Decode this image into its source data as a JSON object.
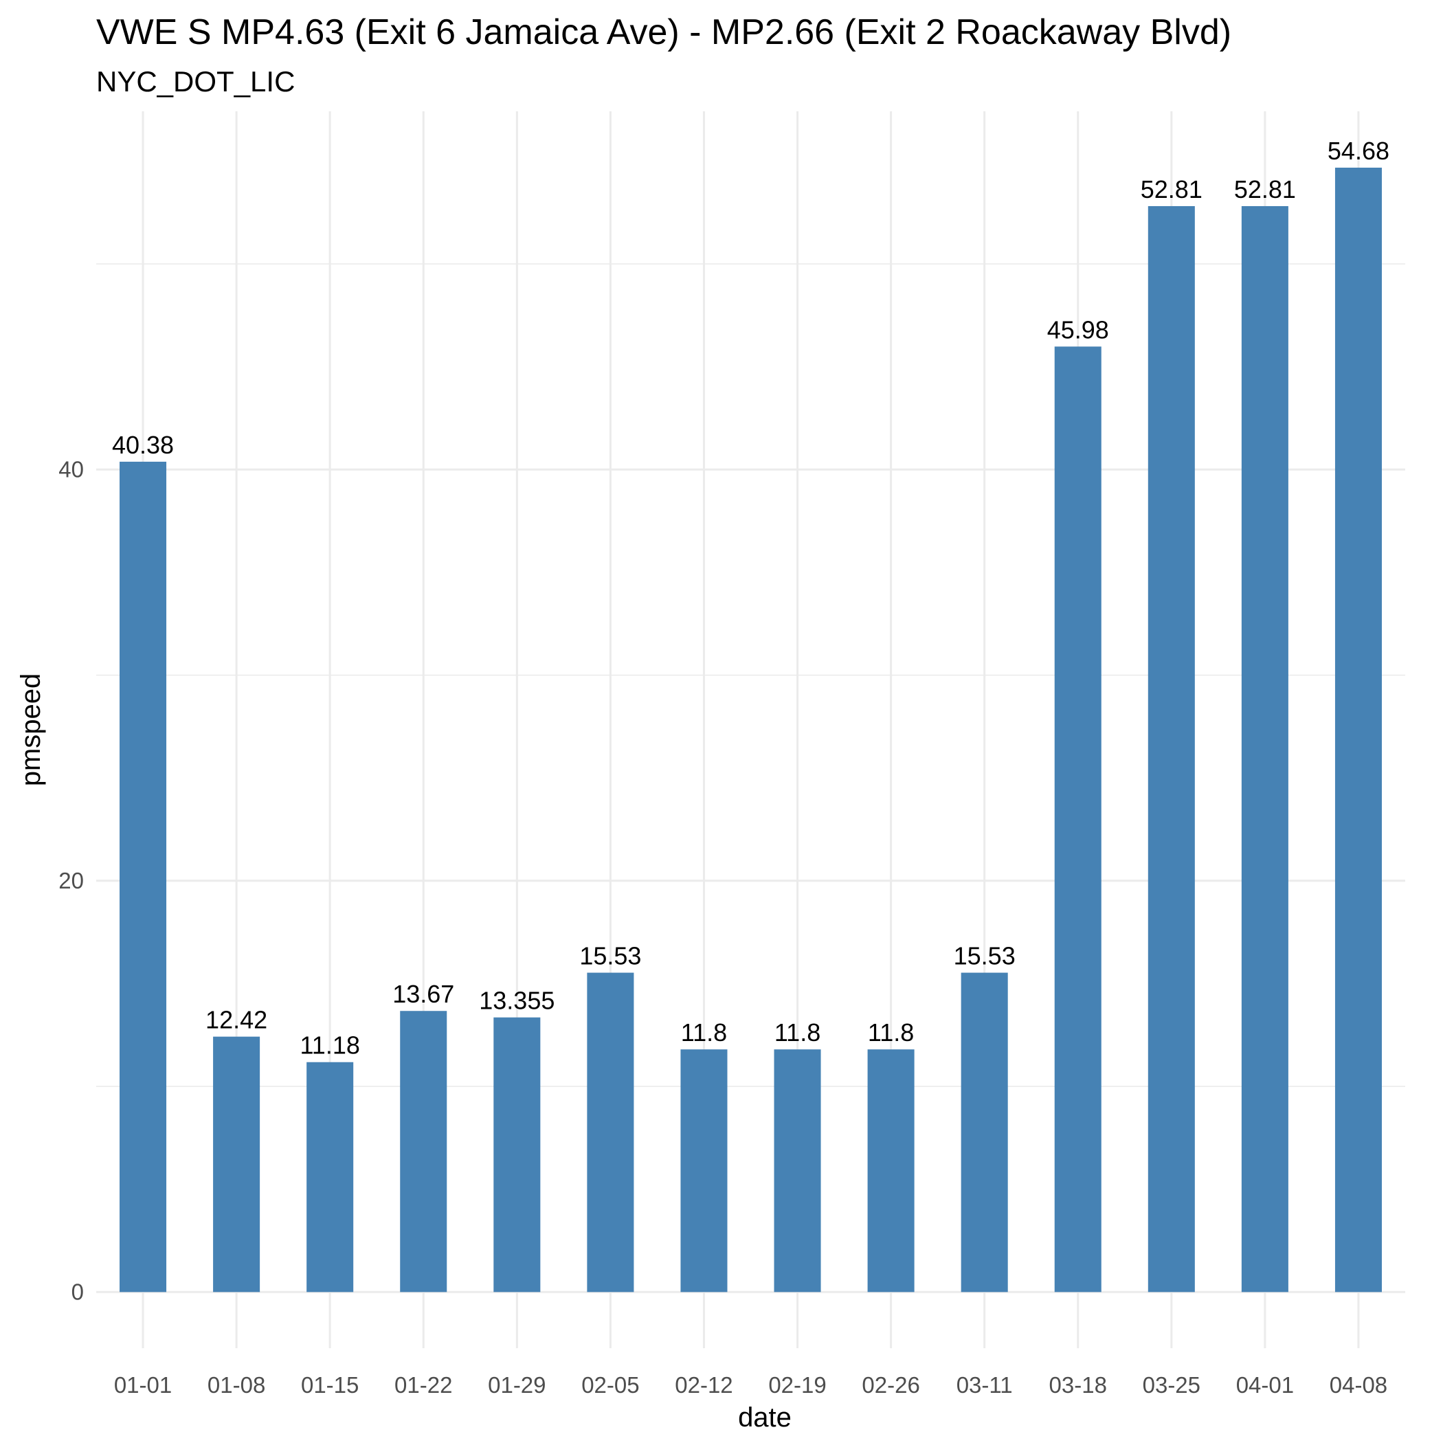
{
  "chart_data": {
    "type": "bar",
    "title": "VWE S MP4.63 (Exit 6 Jamaica Ave) - MP2.66 (Exit 2 Roackaway Blvd)",
    "subtitle": "NYC_DOT_LIC",
    "xlabel": "date",
    "ylabel": "pmspeed",
    "categories": [
      "01-01",
      "01-08",
      "01-15",
      "01-22",
      "01-29",
      "02-05",
      "02-12",
      "02-19",
      "02-26",
      "03-11",
      "03-18",
      "03-25",
      "04-01",
      "04-08"
    ],
    "values": [
      40.38,
      12.42,
      11.18,
      13.67,
      13.355,
      15.53,
      11.8,
      11.8,
      11.8,
      15.53,
      45.98,
      52.81,
      52.81,
      54.68
    ],
    "data_labels": [
      "40.38",
      "12.42",
      "11.18",
      "13.67",
      "13.355",
      "15.53",
      "11.8",
      "11.8",
      "11.8",
      "15.53",
      "45.98",
      "52.81",
      "52.81",
      "54.68"
    ],
    "y_ticks": [
      0,
      20,
      40
    ],
    "y_tick_labels": [
      "0",
      "20",
      "40"
    ],
    "ylim": [
      -2.73,
      57.42
    ],
    "bar_color": "#4682b4",
    "grid": true,
    "legend": "none"
  }
}
